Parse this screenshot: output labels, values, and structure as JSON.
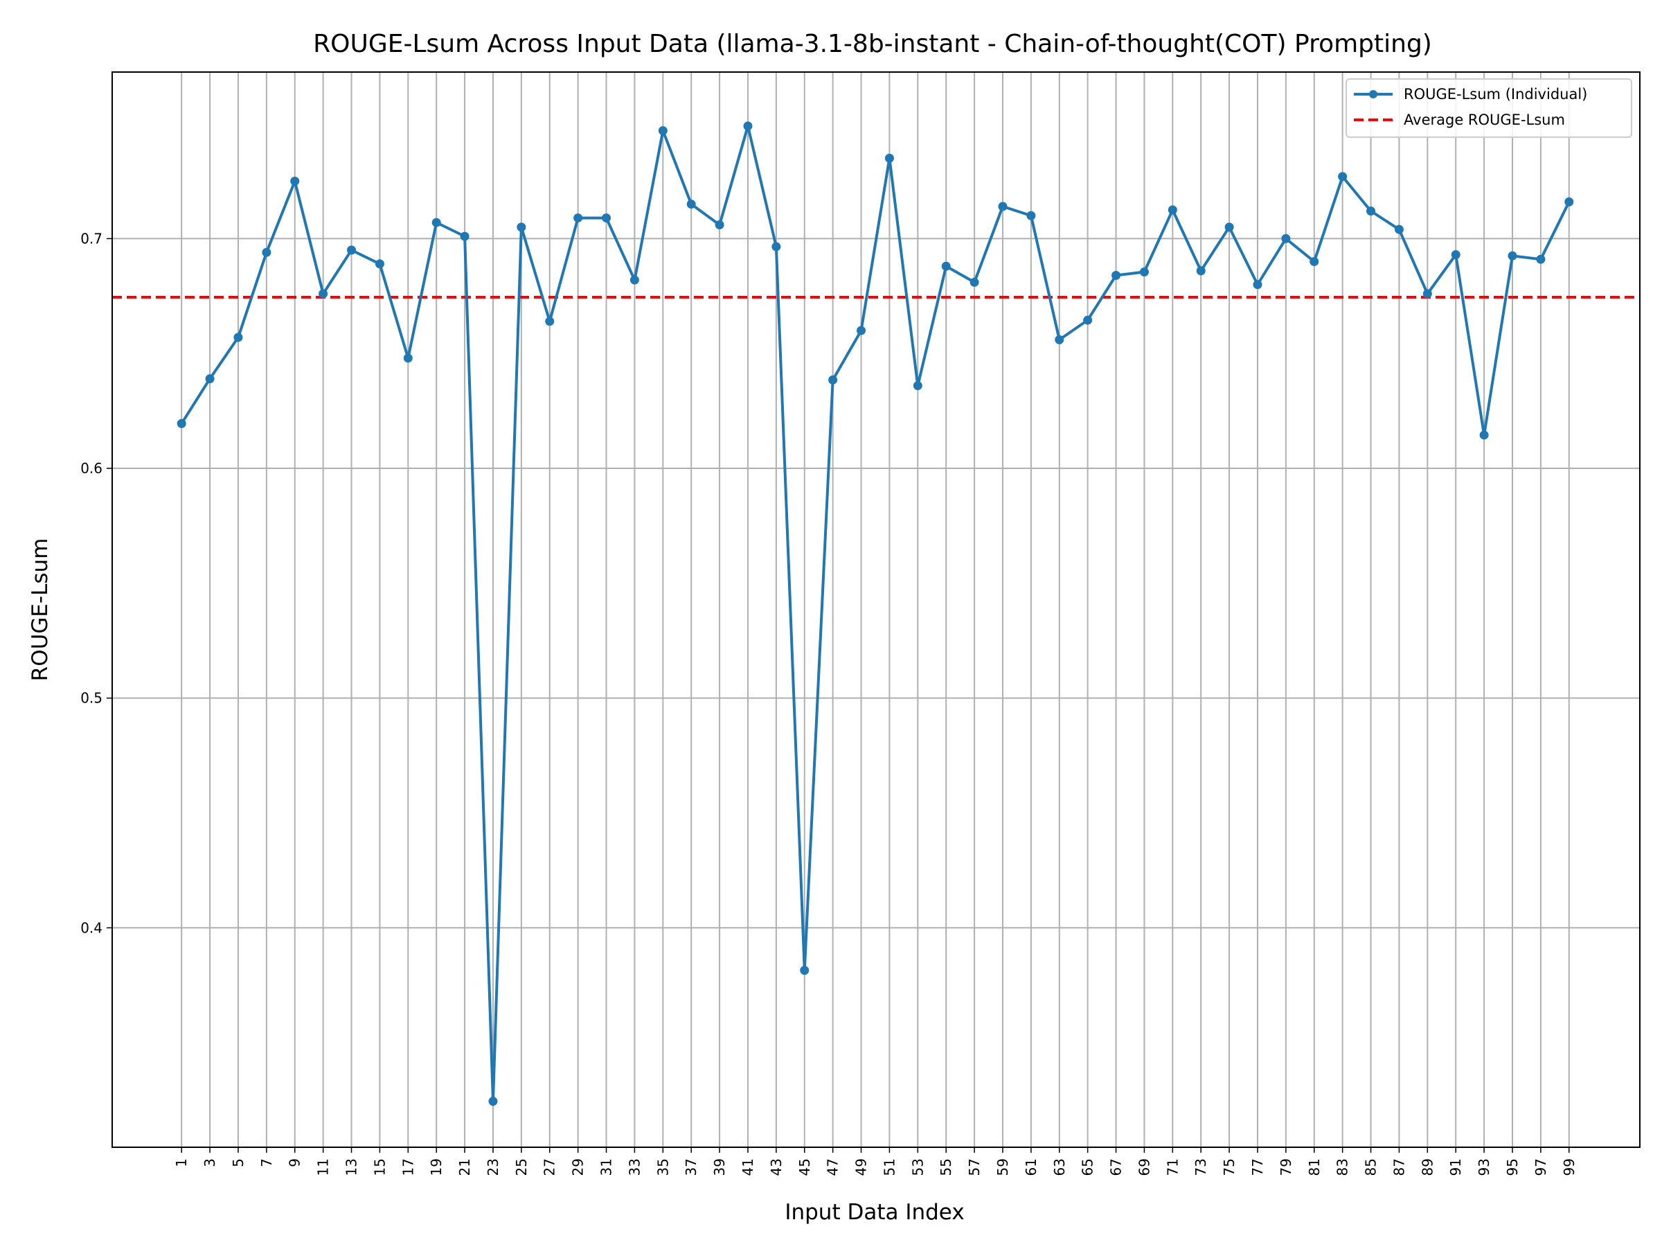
{
  "chart_data": {
    "type": "line",
    "title": "ROUGE-Lsum Across Input Data (llama-3.1-8b-instant - Chain-of-thought(COT) Prompting)",
    "xlabel": "Input Data Index",
    "ylabel": "ROUGE-Lsum",
    "x": [
      1,
      3,
      5,
      7,
      9,
      11,
      13,
      15,
      17,
      19,
      21,
      23,
      25,
      27,
      29,
      31,
      33,
      35,
      37,
      39,
      41,
      43,
      45,
      47,
      49,
      51,
      53,
      55,
      57,
      59,
      61,
      63,
      65,
      67,
      69,
      71,
      73,
      75,
      77,
      79,
      81,
      83,
      85,
      87,
      89,
      91,
      93,
      95,
      97,
      99
    ],
    "x_tick_labels": [
      "1",
      "3",
      "5",
      "7",
      "9",
      "11",
      "13",
      "15",
      "17",
      "19",
      "21",
      "23",
      "25",
      "27",
      "29",
      "31",
      "33",
      "35",
      "37",
      "39",
      "41",
      "43",
      "45",
      "47",
      "49",
      "51",
      "53",
      "55",
      "57",
      "59",
      "61",
      "63",
      "65",
      "67",
      "69",
      "71",
      "73",
      "75",
      "77",
      "79",
      "81",
      "83",
      "85",
      "87",
      "89",
      "91",
      "93",
      "95",
      "97",
      "99"
    ],
    "y_ticks": [
      0.4,
      0.5,
      0.6,
      0.7
    ],
    "y_tick_labels": [
      "0.4",
      "0.5",
      "0.6",
      "0.7"
    ],
    "xlim": [
      -3.9,
      104.0
    ],
    "ylim": [
      0.3045,
      0.7725
    ],
    "grid": true,
    "legend_position": "top-right",
    "series": [
      {
        "name": "ROUGE-Lsum (Individual)",
        "color": "#1f77b4",
        "marker": "circle",
        "values": [
          0.6195,
          0.639,
          0.657,
          0.694,
          0.725,
          0.676,
          0.695,
          0.689,
          0.648,
          0.707,
          0.701,
          0.3245,
          0.705,
          0.664,
          0.709,
          0.709,
          0.682,
          0.747,
          0.715,
          0.706,
          0.749,
          0.6965,
          0.3815,
          0.6385,
          0.66,
          0.735,
          0.636,
          0.688,
          0.681,
          0.714,
          0.71,
          0.656,
          0.6645,
          0.684,
          0.6855,
          0.7125,
          0.686,
          0.705,
          0.68,
          0.7,
          0.69,
          0.727,
          0.712,
          0.704,
          0.676,
          0.693,
          0.6145,
          0.6925,
          0.691,
          0.716
        ]
      }
    ],
    "reference_lines": [
      {
        "name": "Average ROUGE-Lsum",
        "value": 0.6745,
        "color": "#ff0000",
        "style": "dashed"
      }
    ]
  }
}
